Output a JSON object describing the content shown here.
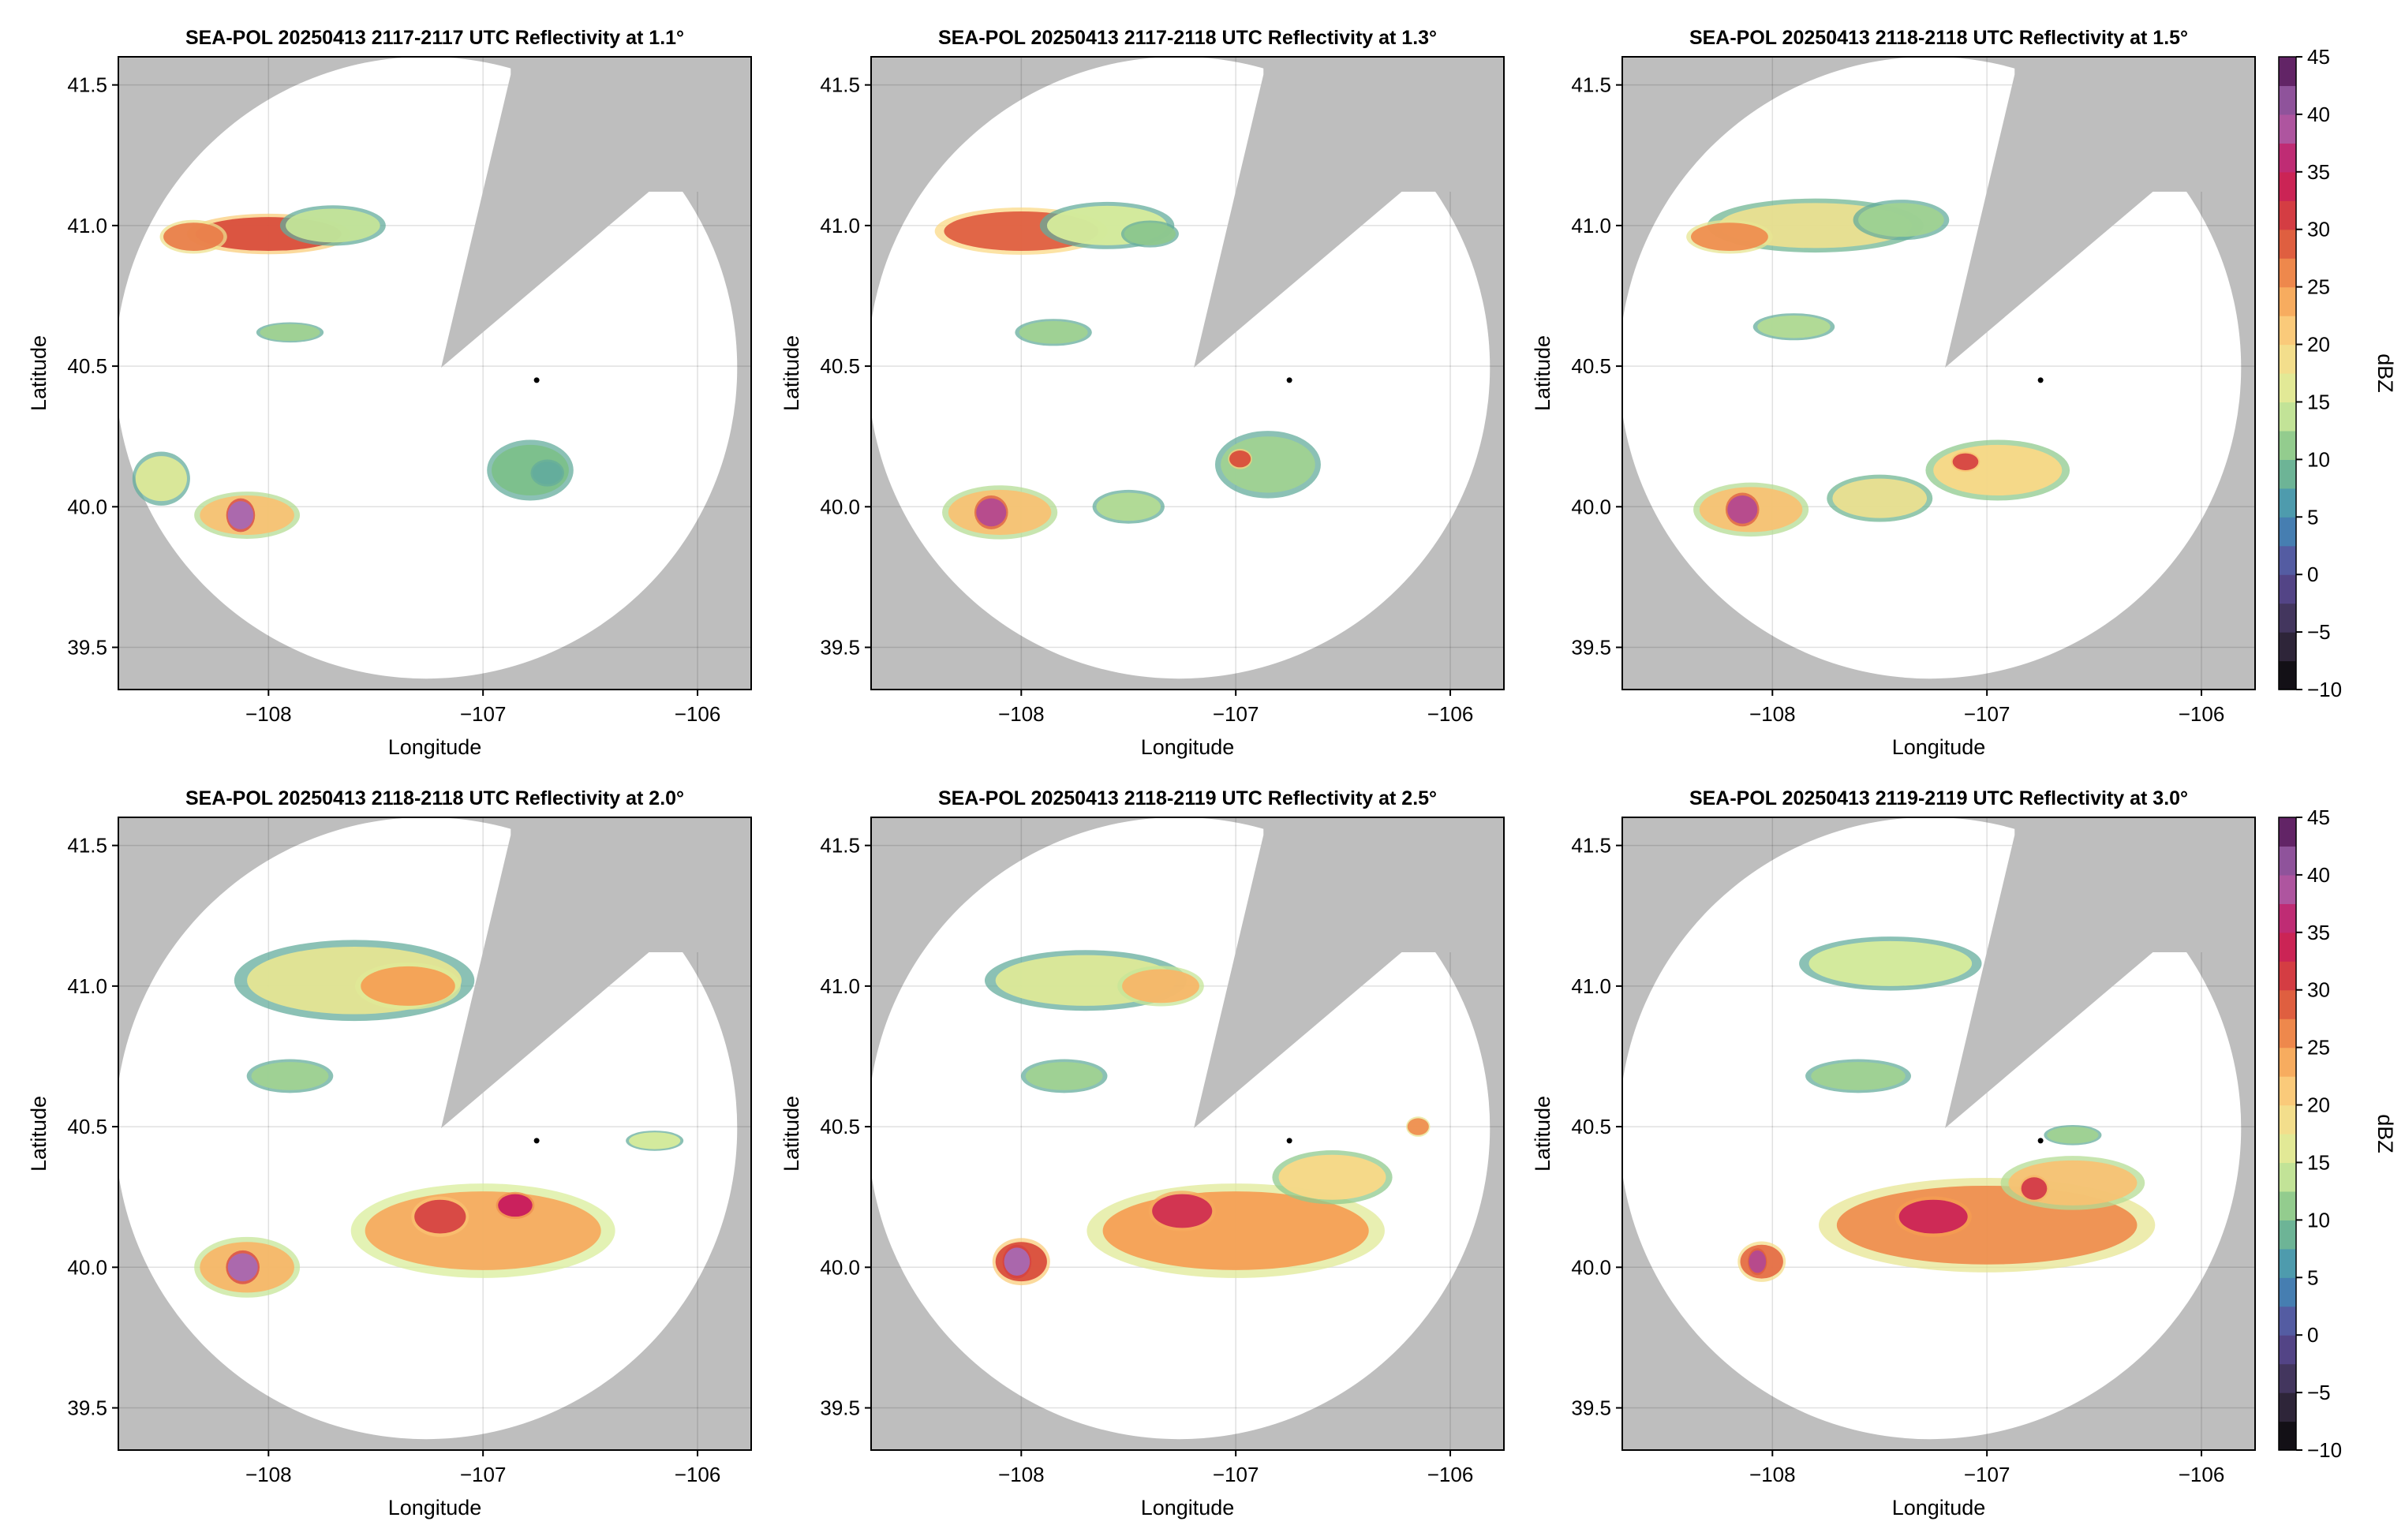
{
  "figure": {
    "background": "#ffffff",
    "mask_color": "#bebebe",
    "radar_location": {
      "lon": -106.75,
      "lat": 40.45
    }
  },
  "chart_data": [
    {
      "type": "heatmap",
      "title": "SEA-POL 20250413 2117-2117 UTC Reflectivity at 1.1°",
      "xlabel": "Longitude",
      "ylabel": "Latitude",
      "xlim": [
        -108.7,
        -105.75
      ],
      "ylim": [
        39.35,
        41.6
      ],
      "xticks": [
        -108,
        -107,
        -106
      ],
      "xtick_labels": [
        "−108",
        "−107",
        "−106"
      ],
      "yticks": [
        39.5,
        40.0,
        40.5,
        41.0,
        41.5
      ],
      "ytick_labels": [
        "39.5",
        "40.0",
        "40.5",
        "41.0",
        "41.5"
      ],
      "grid": true,
      "echoes": [
        {
          "lon": -108.0,
          "lat": 40.97,
          "rx": 0.34,
          "ry": 0.06,
          "dbz": 30
        },
        {
          "lon": -108.35,
          "lat": 40.96,
          "rx": 0.14,
          "ry": 0.05,
          "dbz": 27
        },
        {
          "lon": -107.7,
          "lat": 41.0,
          "rx": 0.22,
          "ry": 0.06,
          "dbz": 14
        },
        {
          "lon": -107.9,
          "lat": 40.62,
          "rx": 0.14,
          "ry": 0.03,
          "dbz": 12
        },
        {
          "lon": -108.1,
          "lat": 39.97,
          "rx": 0.22,
          "ry": 0.07,
          "dbz": 22
        },
        {
          "lon": -108.13,
          "lat": 39.97,
          "rx": 0.06,
          "ry": 0.05,
          "dbz": 40
        },
        {
          "lon": -108.5,
          "lat": 40.1,
          "rx": 0.12,
          "ry": 0.08,
          "dbz": 16
        },
        {
          "lon": -106.78,
          "lat": 40.13,
          "rx": 0.18,
          "ry": 0.09,
          "dbz": 10
        },
        {
          "lon": -106.7,
          "lat": 40.12,
          "rx": 0.07,
          "ry": 0.04,
          "dbz": 8
        }
      ]
    },
    {
      "type": "heatmap",
      "title": "SEA-POL 20250413 2117-2118 UTC Reflectivity at 1.3°",
      "xlabel": "Longitude",
      "ylabel": "Latitude",
      "xlim": [
        -108.7,
        -105.75
      ],
      "ylim": [
        39.35,
        41.6
      ],
      "xticks": [
        -108,
        -107,
        -106
      ],
      "xtick_labels": [
        "−108",
        "−107",
        "−106"
      ],
      "yticks": [
        39.5,
        40.0,
        40.5,
        41.0,
        41.5
      ],
      "ytick_labels": [
        "39.5",
        "40.0",
        "40.5",
        "41.0",
        "41.5"
      ],
      "grid": true,
      "echoes": [
        {
          "lon": -108.0,
          "lat": 40.98,
          "rx": 0.36,
          "ry": 0.07,
          "dbz": 29
        },
        {
          "lon": -107.6,
          "lat": 41.0,
          "rx": 0.28,
          "ry": 0.07,
          "dbz": 15
        },
        {
          "lon": -107.4,
          "lat": 40.97,
          "rx": 0.12,
          "ry": 0.04,
          "dbz": 11
        },
        {
          "lon": -107.85,
          "lat": 40.62,
          "rx": 0.16,
          "ry": 0.04,
          "dbz": 12
        },
        {
          "lon": -108.1,
          "lat": 39.98,
          "rx": 0.24,
          "ry": 0.08,
          "dbz": 22
        },
        {
          "lon": -108.14,
          "lat": 39.98,
          "rx": 0.07,
          "ry": 0.05,
          "dbz": 38
        },
        {
          "lon": -107.5,
          "lat": 40.0,
          "rx": 0.15,
          "ry": 0.05,
          "dbz": 13
        },
        {
          "lon": -106.85,
          "lat": 40.15,
          "rx": 0.22,
          "ry": 0.1,
          "dbz": 12
        },
        {
          "lon": -106.98,
          "lat": 40.17,
          "rx": 0.05,
          "ry": 0.03,
          "dbz": 30
        }
      ]
    },
    {
      "type": "heatmap",
      "title": "SEA-POL 20250413 2118-2118 UTC Reflectivity at 1.5°",
      "xlabel": "Longitude",
      "ylabel": "Latitude",
      "xlim": [
        -108.7,
        -105.75
      ],
      "ylim": [
        39.35,
        41.6
      ],
      "xticks": [
        -108,
        -107,
        -106
      ],
      "xtick_labels": [
        "−108",
        "−107",
        "−106"
      ],
      "yticks": [
        39.5,
        40.0,
        40.5,
        41.0,
        41.5
      ],
      "ytick_labels": [
        "39.5",
        "40.0",
        "40.5",
        "41.0",
        "41.5"
      ],
      "grid": true,
      "colorbar": {
        "label": "dBZ",
        "min": -10,
        "max": 45,
        "ticks": [
          -10,
          -5,
          0,
          5,
          10,
          15,
          20,
          25,
          30,
          35,
          40,
          45
        ],
        "tick_labels": [
          "−10",
          "−5",
          "0",
          "5",
          "10",
          "15",
          "20",
          "25",
          "30",
          "35",
          "40",
          "45"
        ]
      },
      "echoes": [
        {
          "lon": -107.8,
          "lat": 41.0,
          "rx": 0.45,
          "ry": 0.08,
          "dbz": 18
        },
        {
          "lon": -108.2,
          "lat": 40.96,
          "rx": 0.18,
          "ry": 0.05,
          "dbz": 26
        },
        {
          "lon": -107.4,
          "lat": 41.02,
          "rx": 0.2,
          "ry": 0.06,
          "dbz": 12
        },
        {
          "lon": -107.9,
          "lat": 40.64,
          "rx": 0.17,
          "ry": 0.04,
          "dbz": 13
        },
        {
          "lon": -108.1,
          "lat": 39.99,
          "rx": 0.24,
          "ry": 0.08,
          "dbz": 22
        },
        {
          "lon": -108.14,
          "lat": 39.99,
          "rx": 0.07,
          "ry": 0.05,
          "dbz": 38
        },
        {
          "lon": -107.5,
          "lat": 40.03,
          "rx": 0.22,
          "ry": 0.07,
          "dbz": 18
        },
        {
          "lon": -106.95,
          "lat": 40.13,
          "rx": 0.3,
          "ry": 0.09,
          "dbz": 20
        },
        {
          "lon": -107.1,
          "lat": 40.16,
          "rx": 0.06,
          "ry": 0.03,
          "dbz": 31
        }
      ]
    },
    {
      "type": "heatmap",
      "title": "SEA-POL 20250413 2118-2118 UTC Reflectivity at 2.0°",
      "xlabel": "Longitude",
      "ylabel": "Latitude",
      "xlim": [
        -108.7,
        -105.75
      ],
      "ylim": [
        39.35,
        41.6
      ],
      "xticks": [
        -108,
        -107,
        -106
      ],
      "xtick_labels": [
        "−108",
        "−107",
        "−106"
      ],
      "yticks": [
        39.5,
        40.0,
        40.5,
        41.0,
        41.5
      ],
      "ytick_labels": [
        "39.5",
        "40.0",
        "40.5",
        "41.0",
        "41.5"
      ],
      "grid": true,
      "echoes": [
        {
          "lon": -107.6,
          "lat": 41.02,
          "rx": 0.5,
          "ry": 0.12,
          "dbz": 17
        },
        {
          "lon": -107.35,
          "lat": 41.0,
          "rx": 0.22,
          "ry": 0.07,
          "dbz": 25
        },
        {
          "lon": -107.9,
          "lat": 40.68,
          "rx": 0.18,
          "ry": 0.05,
          "dbz": 12
        },
        {
          "lon": -107.0,
          "lat": 40.13,
          "rx": 0.55,
          "ry": 0.14,
          "dbz": 24
        },
        {
          "lon": -107.2,
          "lat": 40.18,
          "rx": 0.12,
          "ry": 0.06,
          "dbz": 31
        },
        {
          "lon": -106.85,
          "lat": 40.22,
          "rx": 0.08,
          "ry": 0.04,
          "dbz": 35
        },
        {
          "lon": -108.1,
          "lat": 40.0,
          "rx": 0.22,
          "ry": 0.09,
          "dbz": 23
        },
        {
          "lon": -108.12,
          "lat": 40.0,
          "rx": 0.07,
          "ry": 0.05,
          "dbz": 40
        },
        {
          "lon": -106.2,
          "lat": 40.45,
          "rx": 0.12,
          "ry": 0.03,
          "dbz": 15
        }
      ]
    },
    {
      "type": "heatmap",
      "title": "SEA-POL 20250413 2118-2119 UTC Reflectivity at 2.5°",
      "xlabel": "Longitude",
      "ylabel": "Latitude",
      "xlim": [
        -108.7,
        -105.75
      ],
      "ylim": [
        39.35,
        41.6
      ],
      "xticks": [
        -108,
        -107,
        -106
      ],
      "xtick_labels": [
        "−108",
        "−107",
        "−106"
      ],
      "yticks": [
        39.5,
        40.0,
        40.5,
        41.0,
        41.5
      ],
      "ytick_labels": [
        "39.5",
        "40.0",
        "40.5",
        "41.0",
        "41.5"
      ],
      "grid": true,
      "echoes": [
        {
          "lon": -107.7,
          "lat": 41.02,
          "rx": 0.42,
          "ry": 0.09,
          "dbz": 16
        },
        {
          "lon": -107.35,
          "lat": 41.0,
          "rx": 0.18,
          "ry": 0.06,
          "dbz": 23
        },
        {
          "lon": -107.8,
          "lat": 40.68,
          "rx": 0.18,
          "ry": 0.05,
          "dbz": 12
        },
        {
          "lon": -107.0,
          "lat": 40.13,
          "rx": 0.62,
          "ry": 0.14,
          "dbz": 25
        },
        {
          "lon": -107.25,
          "lat": 40.2,
          "rx": 0.14,
          "ry": 0.06,
          "dbz": 33
        },
        {
          "lon": -106.55,
          "lat": 40.32,
          "rx": 0.25,
          "ry": 0.08,
          "dbz": 20
        },
        {
          "lon": -108.0,
          "lat": 40.02,
          "rx": 0.12,
          "ry": 0.07,
          "dbz": 30
        },
        {
          "lon": -108.02,
          "lat": 40.02,
          "rx": 0.06,
          "ry": 0.05,
          "dbz": 40
        },
        {
          "lon": -106.15,
          "lat": 40.5,
          "rx": 0.05,
          "ry": 0.03,
          "dbz": 26
        }
      ]
    },
    {
      "type": "heatmap",
      "title": "SEA-POL 20250413 2119-2119 UTC Reflectivity at 3.0°",
      "xlabel": "Longitude",
      "ylabel": "Latitude",
      "xlim": [
        -108.7,
        -105.75
      ],
      "ylim": [
        39.35,
        41.6
      ],
      "xticks": [
        -108,
        -107,
        -106
      ],
      "xtick_labels": [
        "−108",
        "−107",
        "−106"
      ],
      "yticks": [
        39.5,
        40.0,
        40.5,
        41.0,
        41.5
      ],
      "ytick_labels": [
        "39.5",
        "40.0",
        "40.5",
        "41.0",
        "41.5"
      ],
      "grid": true,
      "colorbar": {
        "label": "dBZ",
        "min": -10,
        "max": 45,
        "ticks": [
          -10,
          -5,
          0,
          5,
          10,
          15,
          20,
          25,
          30,
          35,
          40,
          45
        ],
        "tick_labels": [
          "−10",
          "−5",
          "0",
          "5",
          "10",
          "15",
          "20",
          "25",
          "30",
          "35",
          "40",
          "45"
        ]
      },
      "echoes": [
        {
          "lon": -107.45,
          "lat": 41.08,
          "rx": 0.38,
          "ry": 0.08,
          "dbz": 15
        },
        {
          "lon": -107.6,
          "lat": 40.68,
          "rx": 0.22,
          "ry": 0.05,
          "dbz": 12
        },
        {
          "lon": -107.0,
          "lat": 40.15,
          "rx": 0.7,
          "ry": 0.14,
          "dbz": 26
        },
        {
          "lon": -107.25,
          "lat": 40.18,
          "rx": 0.16,
          "ry": 0.06,
          "dbz": 34
        },
        {
          "lon": -106.6,
          "lat": 40.3,
          "rx": 0.3,
          "ry": 0.08,
          "dbz": 22
        },
        {
          "lon": -106.78,
          "lat": 40.28,
          "rx": 0.06,
          "ry": 0.04,
          "dbz": 32
        },
        {
          "lon": -108.05,
          "lat": 40.02,
          "rx": 0.1,
          "ry": 0.06,
          "dbz": 28
        },
        {
          "lon": -108.07,
          "lat": 40.02,
          "rx": 0.04,
          "ry": 0.04,
          "dbz": 38
        },
        {
          "lon": -106.6,
          "lat": 40.47,
          "rx": 0.12,
          "ry": 0.03,
          "dbz": 12
        }
      ]
    }
  ]
}
